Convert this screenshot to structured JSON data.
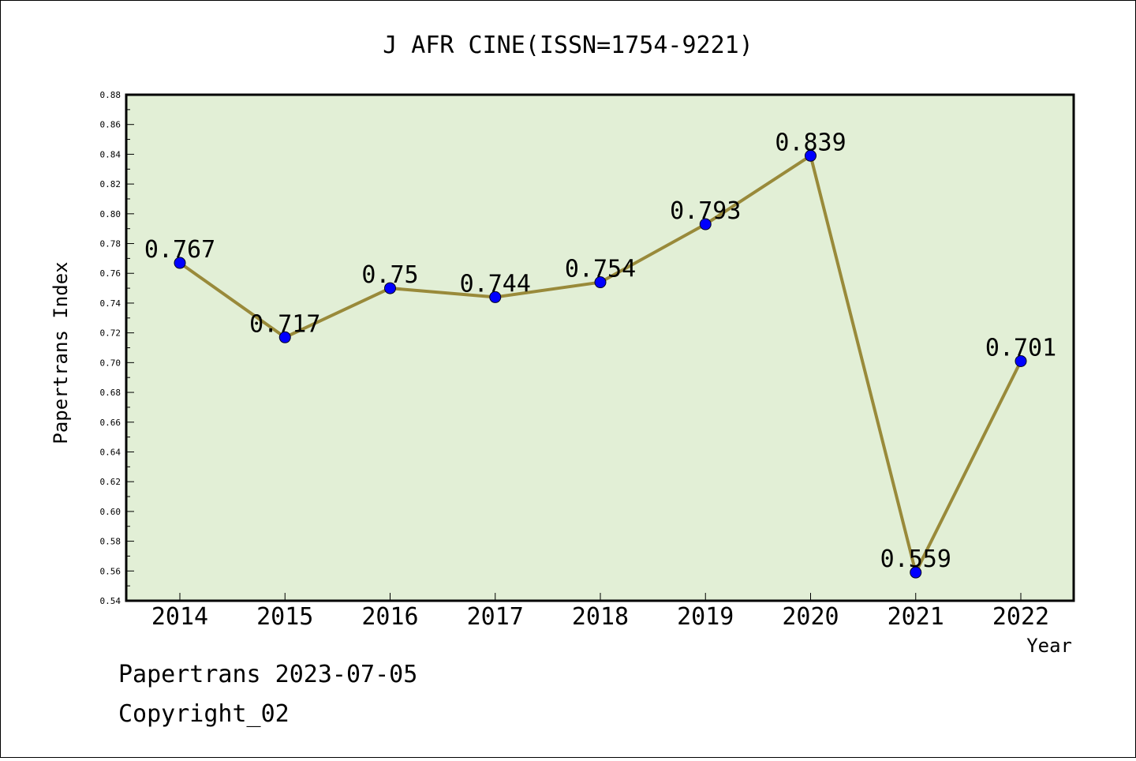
{
  "chart_data": {
    "type": "line",
    "title": "J AFR CINE(ISSN=1754-9221)",
    "xlabel": "Year",
    "ylabel": "Papertrans Index",
    "categories": [
      "2014",
      "2015",
      "2016",
      "2017",
      "2018",
      "2019",
      "2020",
      "2021",
      "2022"
    ],
    "series": [
      {
        "values": [
          0.767,
          0.717,
          0.75,
          0.744,
          0.754,
          0.793,
          0.839,
          0.559,
          0.701
        ],
        "labels": [
          "0.767",
          "0.717",
          "0.75",
          "0.744",
          "0.754",
          "0.793",
          "0.839",
          "0.559",
          "0.701"
        ]
      }
    ],
    "ylim": [
      0.54,
      0.88
    ],
    "yticks": [
      "0.54",
      "0.56",
      "0.58",
      "0.60",
      "0.62",
      "0.64",
      "0.66",
      "0.68",
      "0.70",
      "0.72",
      "0.74",
      "0.76",
      "0.78",
      "0.80",
      "0.82",
      "0.84",
      "0.86",
      "0.88"
    ],
    "grid": false,
    "legend": "none",
    "colors": {
      "plot_background": "#e2efd6",
      "line": "#998a3a",
      "marker": "#0000ff"
    }
  },
  "footer": {
    "line1": "Papertrans 2023-07-05",
    "line2": "Copyright_02"
  }
}
